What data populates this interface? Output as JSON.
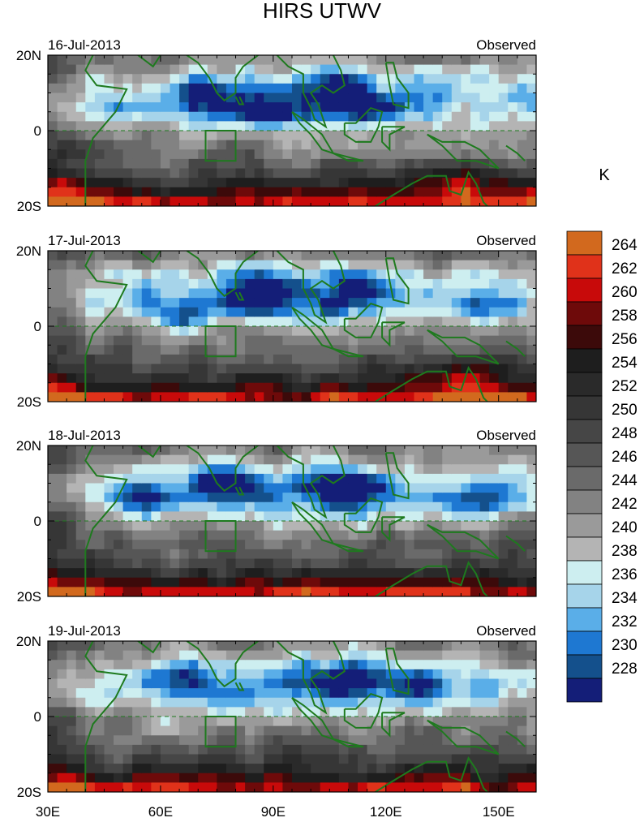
{
  "title": "HIRS UTWV",
  "colorbar": {
    "unit": "K",
    "levels": [
      264,
      262,
      260,
      258,
      256,
      254,
      252,
      250,
      248,
      246,
      244,
      242,
      240,
      238,
      236,
      234,
      232,
      230,
      228
    ],
    "colors": [
      "#d2691e",
      "#e0321a",
      "#c80a0a",
      "#6e0a0a",
      "#3c0a0a",
      "#1e1e1e",
      "#2a2a2a",
      "#363636",
      "#464646",
      "#565656",
      "#6a6a6a",
      "#828282",
      "#9a9a9a",
      "#b4b4b4",
      "#cdeef0",
      "#a6d4ea",
      "#5aaee8",
      "#1e78d2",
      "#14508c",
      "#141e78"
    ]
  },
  "chart_data": [
    {
      "type": "heatmap",
      "date": "16-Jul-2013",
      "label": "Observed",
      "xlim": [
        30,
        160
      ],
      "ylim": [
        -20,
        20
      ],
      "region_box": {
        "lon": [
          72,
          80
        ],
        "lat": [
          -8,
          0
        ]
      }
    },
    {
      "type": "heatmap",
      "date": "17-Jul-2013",
      "label": "Observed",
      "xlim": [
        30,
        160
      ],
      "ylim": [
        -20,
        20
      ],
      "region_box": {
        "lon": [
          72,
          80
        ],
        "lat": [
          -8,
          0
        ]
      }
    },
    {
      "type": "heatmap",
      "date": "18-Jul-2013",
      "label": "Observed",
      "xlim": [
        30,
        160
      ],
      "ylim": [
        -20,
        20
      ],
      "region_box": {
        "lon": [
          72,
          80
        ],
        "lat": [
          -8,
          0
        ]
      }
    },
    {
      "type": "heatmap",
      "date": "19-Jul-2013",
      "label": "Observed",
      "xlim": [
        30,
        160
      ],
      "ylim": [
        -20,
        20
      ],
      "region_box": {
        "lon": [
          72,
          80
        ],
        "lat": [
          -8,
          0
        ]
      }
    }
  ],
  "axes": {
    "x_ticks": [
      {
        "lon": 30,
        "label": "30E"
      },
      {
        "lon": 60,
        "label": "60E"
      },
      {
        "lon": 90,
        "label": "90E"
      },
      {
        "lon": 120,
        "label": "120E"
      },
      {
        "lon": 150,
        "label": "150E"
      }
    ],
    "y_ticks": [
      {
        "lat": 20,
        "label": "20N"
      },
      {
        "lat": 0,
        "label": "0"
      },
      {
        "lat": -20,
        "label": "20S"
      }
    ]
  }
}
